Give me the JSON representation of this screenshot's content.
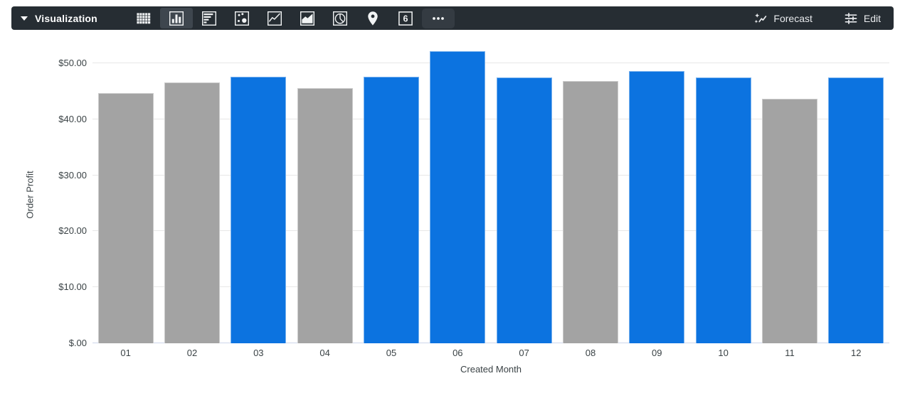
{
  "toolbar": {
    "title": "Visualization",
    "single_value_icon_text": "6",
    "forecast_label": "Forecast",
    "edit_label": "Edit",
    "chart_types": [
      {
        "name": "table",
        "selected": false
      },
      {
        "name": "column",
        "selected": true
      },
      {
        "name": "bar",
        "selected": false
      },
      {
        "name": "scatter",
        "selected": false
      },
      {
        "name": "line",
        "selected": false
      },
      {
        "name": "area",
        "selected": false
      },
      {
        "name": "pie",
        "selected": false
      },
      {
        "name": "map",
        "selected": false
      },
      {
        "name": "single-value",
        "selected": false
      },
      {
        "name": "more",
        "selected": false
      }
    ]
  },
  "chart_data": {
    "type": "bar",
    "title": "",
    "categories": [
      "01",
      "02",
      "03",
      "04",
      "05",
      "06",
      "07",
      "08",
      "09",
      "10",
      "11",
      "12"
    ],
    "values": [
      44.6,
      46.5,
      47.6,
      45.6,
      47.6,
      52.1,
      47.4,
      46.8,
      48.6,
      47.4,
      43.7,
      47.4
    ],
    "bar_colors": [
      "gray",
      "gray",
      "blue",
      "gray",
      "blue",
      "blue",
      "blue",
      "gray",
      "blue",
      "blue",
      "gray",
      "blue"
    ],
    "palette": {
      "blue": "#0c73e0",
      "gray": "#a3a3a3"
    },
    "xlabel": "Created Month",
    "ylabel": "Order Profit",
    "ylim": [
      0,
      53.4
    ],
    "yticks": [
      0,
      10,
      20,
      30,
      40,
      50
    ],
    "ytick_labels": [
      "$.00",
      "$10.00",
      "$20.00",
      "$30.00",
      "$40.00",
      "$50.00"
    ],
    "grid": true,
    "legend": "none",
    "axis_line_color": "#ccd6eb",
    "gridline_color": "#e7e7e7"
  }
}
